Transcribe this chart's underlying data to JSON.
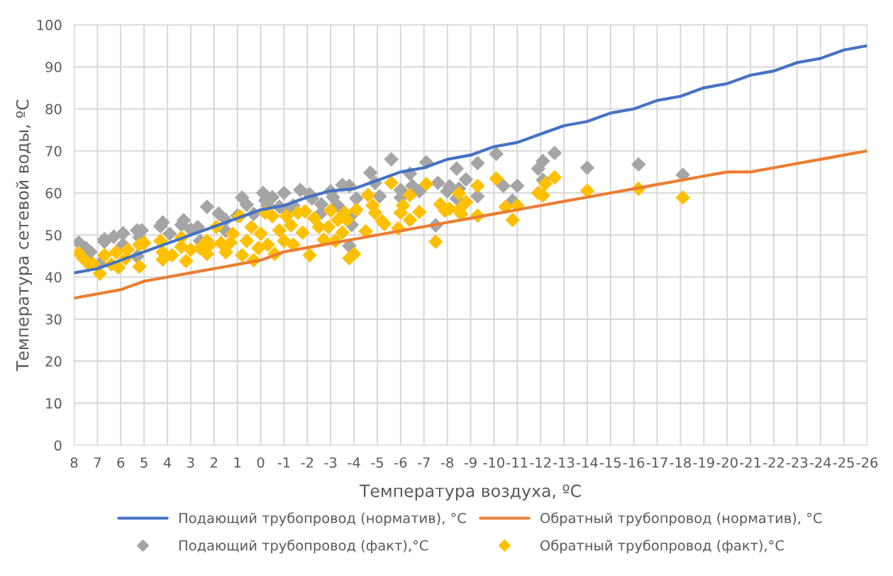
{
  "chart_data": {
    "type": "line",
    "xlabel": "Температура воздуха, ºC",
    "ylabel": "Температура сетевой воды, ºC",
    "xlim": [
      8,
      -26
    ],
    "xticks": [
      8,
      7,
      6,
      5,
      4,
      3,
      2,
      1,
      0,
      -1,
      -2,
      -3,
      -4,
      -5,
      -6,
      -7,
      -8,
      -9,
      -10,
      -11,
      -12,
      -13,
      -14,
      -15,
      -16,
      -17,
      -18,
      -19,
      -20,
      -21,
      -22,
      -23,
      -24,
      -25,
      -26
    ],
    "ylim": [
      0,
      100
    ],
    "yticks": [
      0,
      10,
      20,
      30,
      40,
      50,
      60,
      70,
      80,
      90,
      100
    ],
    "grid": true,
    "legend": "bottom",
    "series": [
      {
        "name": "Подающий трубопровод (норматив), °C",
        "color": "#4472c4",
        "marker": "none",
        "x": [
          8,
          7,
          6,
          5,
          4,
          3,
          2,
          1,
          0,
          -1,
          -2,
          -3,
          -4,
          -5,
          -6,
          -7,
          -8,
          -9,
          -10,
          -11,
          -12,
          -13,
          -14,
          -15,
          -16,
          -17,
          -18,
          -19,
          -20,
          -21,
          -22,
          -23,
          -24,
          -25,
          -26
        ],
        "values": [
          41,
          42,
          44,
          46,
          48,
          50,
          52,
          54,
          56,
          57,
          59,
          60.5,
          61,
          63,
          65,
          66,
          68,
          69,
          71,
          72,
          74,
          76,
          77,
          79,
          80,
          82,
          83,
          85,
          86,
          88,
          89,
          91,
          92,
          94,
          95
        ]
      },
      {
        "name": "Обратный трубопровод (норматив), °C",
        "color": "#ed7d31",
        "marker": "none",
        "x": [
          8,
          7,
          6,
          5,
          4,
          3,
          2,
          1,
          0,
          -1,
          -2,
          -3,
          -4,
          -5,
          -6,
          -7,
          -8,
          -9,
          -10,
          -11,
          -12,
          -13,
          -14,
          -15,
          -16,
          -17,
          -18,
          -19,
          -20,
          -21,
          -22,
          -23,
          -24,
          -25,
          -26
        ],
        "values": [
          35,
          36,
          37,
          39,
          40,
          41,
          42,
          43,
          44,
          46,
          47,
          48,
          49,
          50,
          51,
          52,
          53,
          54,
          55,
          56,
          57,
          58,
          59,
          60,
          61,
          62,
          63,
          64,
          65,
          65,
          66,
          67,
          68,
          69,
          70
        ]
      },
      {
        "name": "Подающий трубопровод (факт),°C",
        "type": "scatter",
        "color": "#a5a5a5",
        "marker": "diamond",
        "x": [
          7.8,
          7.5,
          7.3,
          6.9,
          6.7,
          6.7,
          6.3,
          5.9,
          5.9,
          5.3,
          5.1,
          5.2,
          5.3,
          4.3,
          4.2,
          3.9,
          3.4,
          3.3,
          3.0,
          2.7,
          2.3,
          1.8,
          1.5,
          1.0,
          0.8,
          0.6,
          0.3,
          -0.1,
          -0.2,
          -0.5,
          -1.0,
          -1.1,
          -1.7,
          -2.1,
          -2.6,
          -3.0,
          -3.1,
          -3.5,
          -3.8,
          -3.9,
          -3.8,
          -4.1,
          -4.7,
          -4.9,
          -5.1,
          -5.6,
          -6.0,
          -6.0,
          -6.4,
          -6.5,
          -6.8,
          -7.1,
          -7.5,
          -7.6,
          -8.0,
          -8.1,
          -8.4,
          -8.5,
          -8.8,
          -8.4,
          -9.3,
          -9.3,
          -10.1,
          -10.4,
          -10.8,
          -11.0,
          -11.9,
          -12.1,
          -12.1,
          -12.6,
          -14.0,
          -16.2,
          -18.1,
          -0.3,
          -0.8,
          -1.4,
          -2.2,
          -2.6,
          -3.3,
          -4.0,
          1.5,
          2.6
        ],
        "values": [
          48.2,
          46.9,
          46,
          43.2,
          48.4,
          49,
          49.6,
          50.4,
          47.7,
          51.1,
          51.1,
          49.4,
          44.9,
          52.1,
          53,
          50.3,
          52.4,
          53.5,
          51.3,
          51.9,
          56.7,
          55.1,
          53.6,
          54.6,
          58.9,
          57.2,
          55,
          60,
          58.2,
          59,
          60,
          55.6,
          60.7,
          59.7,
          57.3,
          60.4,
          59,
          61.9,
          61.7,
          52.4,
          47.4,
          58.7,
          64.8,
          62.4,
          59.2,
          68,
          60.7,
          58.9,
          64.6,
          61.7,
          60.4,
          67.3,
          52.3,
          62.4,
          60.4,
          61.6,
          65.8,
          61,
          63.2,
          58.7,
          59.2,
          67.1,
          69.3,
          61.7,
          58.2,
          61.7,
          65.8,
          63.1,
          67.6,
          69.5,
          66,
          66.8,
          64.3,
          57,
          56.7,
          57,
          58.7,
          55.3,
          57,
          55.3,
          51,
          48.6
        ]
      },
      {
        "name": "Обратный трубопровод (факт),°C",
        "type": "scatter",
        "color": "#ffc000",
        "marker": "diamond",
        "x": [
          7.8,
          7.6,
          7.4,
          7.2,
          6.9,
          6.7,
          6.4,
          6.2,
          6.1,
          5.8,
          5.7,
          5.2,
          5.2,
          5.0,
          4.3,
          4.2,
          4.2,
          3.8,
          3.4,
          3.4,
          3.2,
          3.0,
          2.6,
          2.3,
          2.3,
          2.2,
          1.9,
          1.7,
          1.5,
          1.3,
          1.2,
          0.9,
          0.8,
          0.6,
          0.4,
          0.3,
          0.1,
          0.0,
          -0.2,
          -0.3,
          -0.5,
          -0.6,
          -0.8,
          -1.0,
          -1.1,
          -1.3,
          -1.4,
          -1.6,
          -1.8,
          -1.9,
          -2.1,
          -2.3,
          -2.5,
          -2.7,
          -2.9,
          -3.0,
          -3.2,
          -3.3,
          -3.5,
          -3.6,
          -3.7,
          -3.8,
          -4.0,
          -4.1,
          -4.5,
          -4.6,
          -4.8,
          -4.9,
          -5.2,
          -5.3,
          -5.6,
          -5.9,
          -6.0,
          -6.1,
          -6.4,
          -6.4,
          -6.8,
          -7.1,
          -7.5,
          -7.7,
          -7.9,
          -8.1,
          -8.5,
          -8.6,
          -8.5,
          -8.8,
          -9.3,
          -9.3,
          -10.1,
          -10.5,
          -10.8,
          -11.0,
          -11.9,
          -12.1,
          -12.2,
          -12.6,
          -14.0,
          -16.2,
          -18.1
        ],
        "values": [
          45.7,
          44.4,
          43.2,
          43.2,
          40.8,
          45.2,
          43,
          45.9,
          42.3,
          44.4,
          46.5,
          42.5,
          47.7,
          48.1,
          48.6,
          45.9,
          44.2,
          45.2,
          47.2,
          49.4,
          43.8,
          46.5,
          46.9,
          48.6,
          45.5,
          47.6,
          51.9,
          48.1,
          45.9,
          48.2,
          50.3,
          54.5,
          45.2,
          48.6,
          51.9,
          44,
          46.9,
          50.3,
          55.3,
          47.7,
          54.5,
          45.5,
          51.1,
          48.6,
          54.5,
          52.3,
          47.7,
          55.3,
          50.6,
          55.6,
          45.2,
          54,
          51.9,
          48.9,
          51.9,
          55.8,
          48.6,
          53.6,
          50.6,
          55.3,
          53.6,
          44.5,
          45.5,
          56,
          50.9,
          59.5,
          57,
          55.3,
          53.3,
          52.6,
          62.4,
          51.6,
          55.3,
          57,
          59.5,
          53.6,
          55.5,
          62.1,
          48.4,
          57.3,
          55.8,
          56.2,
          56,
          55,
          59.9,
          57.8,
          61.7,
          54.6,
          63.4,
          56.7,
          53.6,
          57,
          60,
          59.4,
          62.2,
          63.7,
          60.5,
          61,
          58.9
        ]
      }
    ]
  }
}
